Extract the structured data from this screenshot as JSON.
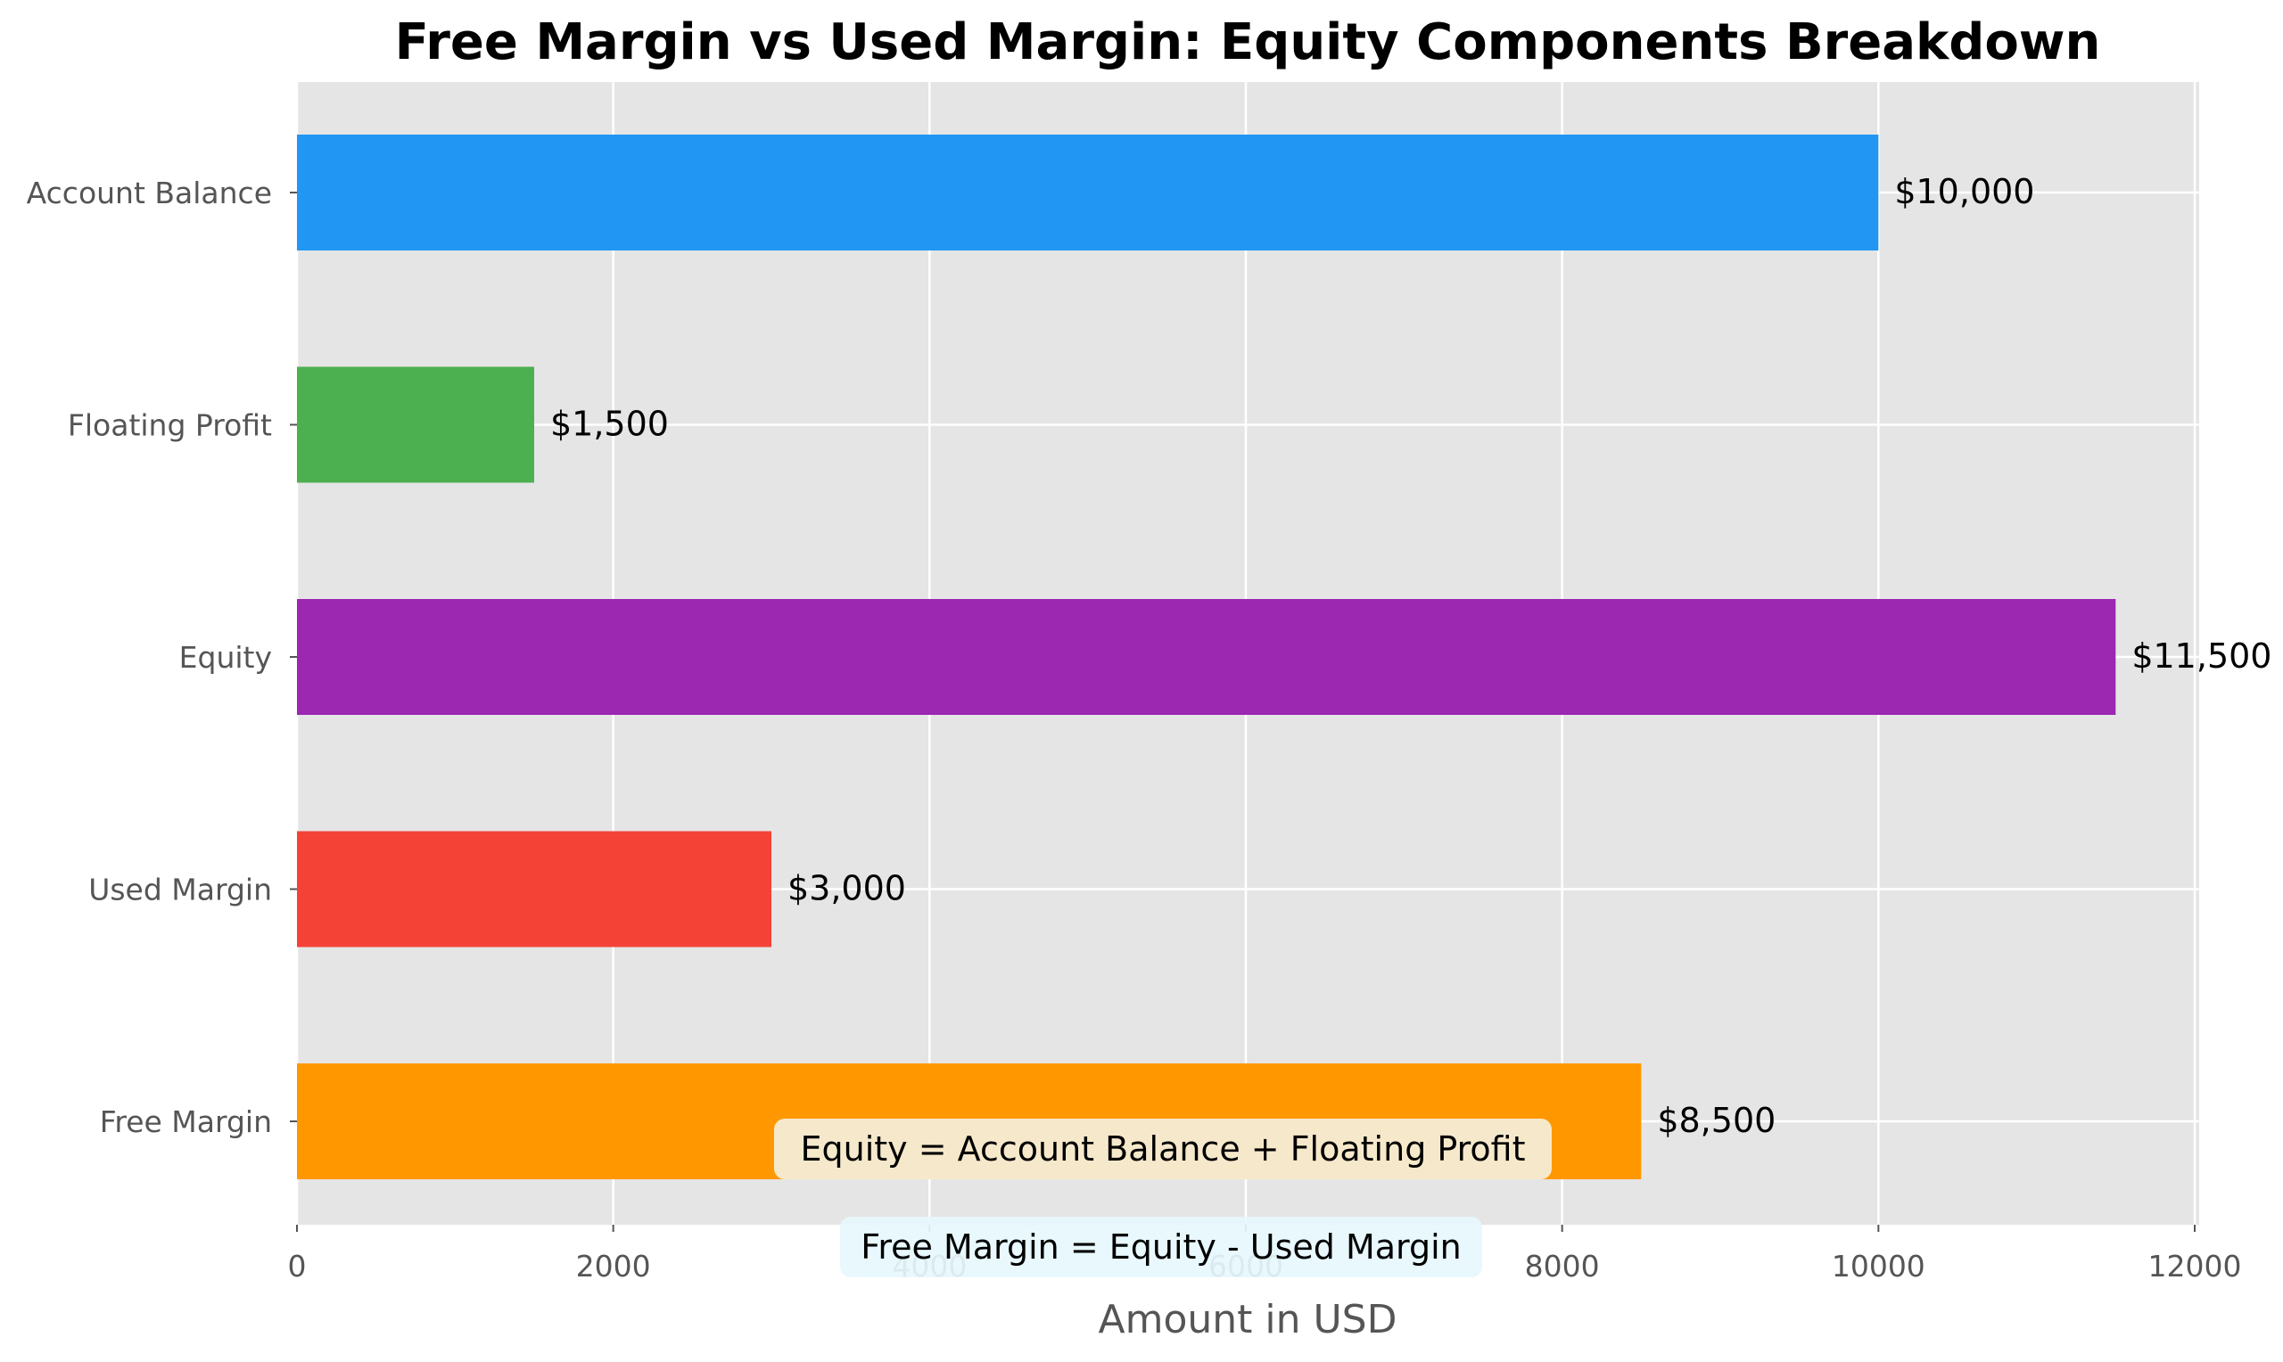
{
  "chart_data": {
    "type": "bar",
    "orientation": "horizontal",
    "title": "Free Margin vs Used Margin: Equity Components Breakdown",
    "xlabel": "Amount in USD",
    "ylabel": "",
    "xlim": [
      0,
      12000
    ],
    "x_ticks": [
      0,
      2000,
      4000,
      6000,
      8000,
      10000,
      12000
    ],
    "grid": true,
    "categories": [
      "Account Balance",
      "Floating Profit",
      "Equity",
      "Used Margin",
      "Free Margin"
    ],
    "values": [
      10000,
      1500,
      11500,
      3000,
      8500
    ],
    "value_labels": [
      "$10,000",
      "$1,500",
      "$11,500",
      "$3,000",
      "$8,500"
    ],
    "colors": [
      "#2196F3",
      "#4CAF50",
      "#9C27B0",
      "#F44336",
      "#FF9800"
    ],
    "annotations": [
      {
        "text": "Equity = Account Balance + Floating Profit",
        "background": "#F5F0DC"
      },
      {
        "text": "Free Margin = Equity - Used Margin",
        "background": "#E6F7FC"
      }
    ]
  }
}
